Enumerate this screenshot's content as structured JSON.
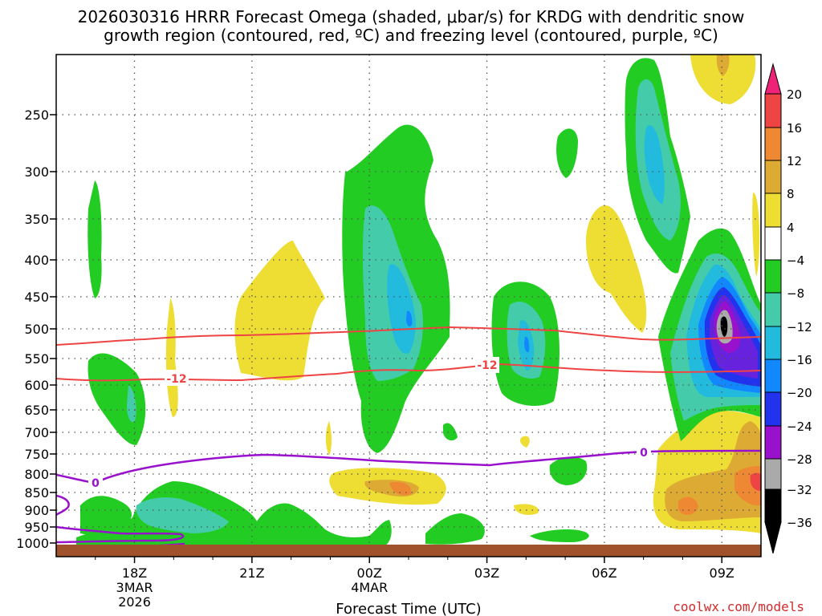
{
  "title_line1": "2026030316 HRRR Forecast Omega (shaded, μbar/s) for KRDG with dendritic snow",
  "title_line2": "growth region (contoured, red, ºC) and freezing level (contoured, purple, ºC)",
  "credit": "coolwx.com/models",
  "colors": {
    "green": "#22cc22",
    "teal": "#44ccaa",
    "cyan": "#22bbdd",
    "blue": "#1188ff",
    "dblue": "#2233ee",
    "indigo": "#6622dd",
    "purple": "#9911cc",
    "gray": "#aaaaaa",
    "black": "#000000",
    "yellow": "#eedd33",
    "gold": "#ddaa33",
    "orange": "#ee8833",
    "red": "#ee4444",
    "magenta": "#ee2277",
    "ground": "#a0522d",
    "dgz": "#ee4444",
    "freezing": "#9911cc"
  },
  "chart_data": {
    "type": "heatmap",
    "xlabel": "Forecast Time (UTC)",
    "x_ticks": [
      {
        "label": "18Z",
        "sub": [
          "3MAR",
          "2026"
        ],
        "hour": 18
      },
      {
        "label": "21Z",
        "sub": [],
        "hour": 21
      },
      {
        "label": "00Z",
        "sub": [
          "4MAR"
        ],
        "hour": 24
      },
      {
        "label": "03Z",
        "sub": [],
        "hour": 27
      },
      {
        "label": "06Z",
        "sub": [],
        "hour": 30
      },
      {
        "label": "09Z",
        "sub": [],
        "hour": 33
      }
    ],
    "xlim_hours": [
      16,
      34
    ],
    "y_ticks": [
      250,
      300,
      350,
      400,
      450,
      500,
      550,
      600,
      650,
      700,
      750,
      800,
      850,
      900,
      950,
      1000
    ],
    "ylim_hpa": [
      200,
      1015
    ],
    "colorbar_levels": [
      "20",
      "16",
      "12",
      "8",
      "4",
      "−4",
      "−8",
      "−12",
      "−16",
      "−20",
      "−24",
      "−28",
      "−32",
      "−36"
    ],
    "contour_labels": {
      "dgz_a": "-12",
      "dgz_b": "-12",
      "fz_a": "0",
      "fz_b": "0"
    }
  }
}
